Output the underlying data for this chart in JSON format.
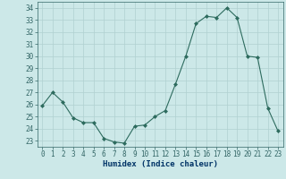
{
  "x": [
    0,
    1,
    2,
    3,
    4,
    5,
    6,
    7,
    8,
    9,
    10,
    11,
    12,
    13,
    14,
    15,
    16,
    17,
    18,
    19,
    20,
    21,
    22,
    23
  ],
  "y": [
    25.9,
    27.0,
    26.2,
    24.9,
    24.5,
    24.5,
    23.2,
    22.9,
    22.8,
    24.2,
    24.3,
    25.0,
    25.5,
    27.7,
    30.0,
    32.7,
    33.3,
    33.2,
    34.0,
    33.2,
    30.0,
    29.9,
    25.7,
    23.8
  ],
  "line_color": "#2d6b5e",
  "marker_color": "#2d6b5e",
  "bg_color": "#cce8e8",
  "grid_color": "#b0d0d0",
  "xlabel": "Humidex (Indice chaleur)",
  "ylim": [
    22.5,
    34.5
  ],
  "xlim": [
    -0.5,
    23.5
  ],
  "yticks": [
    23,
    24,
    25,
    26,
    27,
    28,
    29,
    30,
    31,
    32,
    33,
    34
  ],
  "xticks": [
    0,
    1,
    2,
    3,
    4,
    5,
    6,
    7,
    8,
    9,
    10,
    11,
    12,
    13,
    14,
    15,
    16,
    17,
    18,
    19,
    20,
    21,
    22,
    23
  ],
  "spine_color": "#336666",
  "tick_color": "#336666",
  "label_color": "#003366"
}
